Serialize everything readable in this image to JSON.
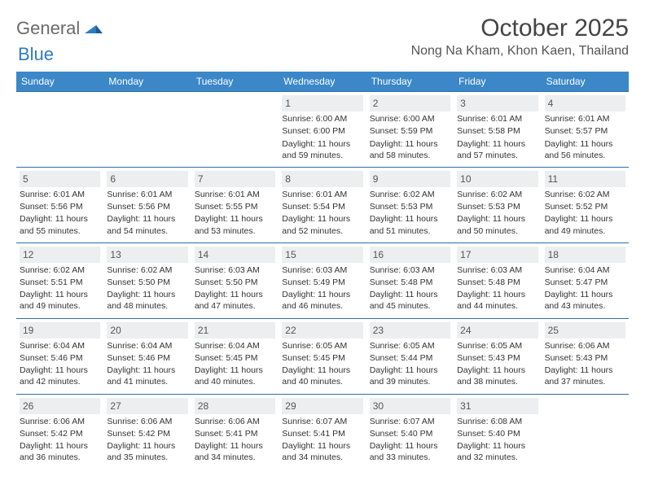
{
  "brand": {
    "word1": "General",
    "word2": "Blue",
    "word1_color": "#6a6a6a",
    "word2_color": "#2e7cc0",
    "mark_color": "#2e7cc0"
  },
  "title": "October 2025",
  "location": "Nong Na Kham, Khon Kaen, Thailand",
  "colors": {
    "header_bg": "#3b87c8",
    "header_text": "#ffffff",
    "row_divider": "#2e6da8",
    "daynum_bg": "#eceeef",
    "text": "#333333"
  },
  "weekdays": [
    "Sunday",
    "Monday",
    "Tuesday",
    "Wednesday",
    "Thursday",
    "Friday",
    "Saturday"
  ],
  "weeks": [
    [
      null,
      null,
      null,
      {
        "n": "1",
        "sr": "Sunrise: 6:00 AM",
        "ss": "Sunset: 6:00 PM",
        "dl": "Daylight: 11 hours and 59 minutes."
      },
      {
        "n": "2",
        "sr": "Sunrise: 6:00 AM",
        "ss": "Sunset: 5:59 PM",
        "dl": "Daylight: 11 hours and 58 minutes."
      },
      {
        "n": "3",
        "sr": "Sunrise: 6:01 AM",
        "ss": "Sunset: 5:58 PM",
        "dl": "Daylight: 11 hours and 57 minutes."
      },
      {
        "n": "4",
        "sr": "Sunrise: 6:01 AM",
        "ss": "Sunset: 5:57 PM",
        "dl": "Daylight: 11 hours and 56 minutes."
      }
    ],
    [
      {
        "n": "5",
        "sr": "Sunrise: 6:01 AM",
        "ss": "Sunset: 5:56 PM",
        "dl": "Daylight: 11 hours and 55 minutes."
      },
      {
        "n": "6",
        "sr": "Sunrise: 6:01 AM",
        "ss": "Sunset: 5:56 PM",
        "dl": "Daylight: 11 hours and 54 minutes."
      },
      {
        "n": "7",
        "sr": "Sunrise: 6:01 AM",
        "ss": "Sunset: 5:55 PM",
        "dl": "Daylight: 11 hours and 53 minutes."
      },
      {
        "n": "8",
        "sr": "Sunrise: 6:01 AM",
        "ss": "Sunset: 5:54 PM",
        "dl": "Daylight: 11 hours and 52 minutes."
      },
      {
        "n": "9",
        "sr": "Sunrise: 6:02 AM",
        "ss": "Sunset: 5:53 PM",
        "dl": "Daylight: 11 hours and 51 minutes."
      },
      {
        "n": "10",
        "sr": "Sunrise: 6:02 AM",
        "ss": "Sunset: 5:53 PM",
        "dl": "Daylight: 11 hours and 50 minutes."
      },
      {
        "n": "11",
        "sr": "Sunrise: 6:02 AM",
        "ss": "Sunset: 5:52 PM",
        "dl": "Daylight: 11 hours and 49 minutes."
      }
    ],
    [
      {
        "n": "12",
        "sr": "Sunrise: 6:02 AM",
        "ss": "Sunset: 5:51 PM",
        "dl": "Daylight: 11 hours and 49 minutes."
      },
      {
        "n": "13",
        "sr": "Sunrise: 6:02 AM",
        "ss": "Sunset: 5:50 PM",
        "dl": "Daylight: 11 hours and 48 minutes."
      },
      {
        "n": "14",
        "sr": "Sunrise: 6:03 AM",
        "ss": "Sunset: 5:50 PM",
        "dl": "Daylight: 11 hours and 47 minutes."
      },
      {
        "n": "15",
        "sr": "Sunrise: 6:03 AM",
        "ss": "Sunset: 5:49 PM",
        "dl": "Daylight: 11 hours and 46 minutes."
      },
      {
        "n": "16",
        "sr": "Sunrise: 6:03 AM",
        "ss": "Sunset: 5:48 PM",
        "dl": "Daylight: 11 hours and 45 minutes."
      },
      {
        "n": "17",
        "sr": "Sunrise: 6:03 AM",
        "ss": "Sunset: 5:48 PM",
        "dl": "Daylight: 11 hours and 44 minutes."
      },
      {
        "n": "18",
        "sr": "Sunrise: 6:04 AM",
        "ss": "Sunset: 5:47 PM",
        "dl": "Daylight: 11 hours and 43 minutes."
      }
    ],
    [
      {
        "n": "19",
        "sr": "Sunrise: 6:04 AM",
        "ss": "Sunset: 5:46 PM",
        "dl": "Daylight: 11 hours and 42 minutes."
      },
      {
        "n": "20",
        "sr": "Sunrise: 6:04 AM",
        "ss": "Sunset: 5:46 PM",
        "dl": "Daylight: 11 hours and 41 minutes."
      },
      {
        "n": "21",
        "sr": "Sunrise: 6:04 AM",
        "ss": "Sunset: 5:45 PM",
        "dl": "Daylight: 11 hours and 40 minutes."
      },
      {
        "n": "22",
        "sr": "Sunrise: 6:05 AM",
        "ss": "Sunset: 5:45 PM",
        "dl": "Daylight: 11 hours and 40 minutes."
      },
      {
        "n": "23",
        "sr": "Sunrise: 6:05 AM",
        "ss": "Sunset: 5:44 PM",
        "dl": "Daylight: 11 hours and 39 minutes."
      },
      {
        "n": "24",
        "sr": "Sunrise: 6:05 AM",
        "ss": "Sunset: 5:43 PM",
        "dl": "Daylight: 11 hours and 38 minutes."
      },
      {
        "n": "25",
        "sr": "Sunrise: 6:06 AM",
        "ss": "Sunset: 5:43 PM",
        "dl": "Daylight: 11 hours and 37 minutes."
      }
    ],
    [
      {
        "n": "26",
        "sr": "Sunrise: 6:06 AM",
        "ss": "Sunset: 5:42 PM",
        "dl": "Daylight: 11 hours and 36 minutes."
      },
      {
        "n": "27",
        "sr": "Sunrise: 6:06 AM",
        "ss": "Sunset: 5:42 PM",
        "dl": "Daylight: 11 hours and 35 minutes."
      },
      {
        "n": "28",
        "sr": "Sunrise: 6:06 AM",
        "ss": "Sunset: 5:41 PM",
        "dl": "Daylight: 11 hours and 34 minutes."
      },
      {
        "n": "29",
        "sr": "Sunrise: 6:07 AM",
        "ss": "Sunset: 5:41 PM",
        "dl": "Daylight: 11 hours and 34 minutes."
      },
      {
        "n": "30",
        "sr": "Sunrise: 6:07 AM",
        "ss": "Sunset: 5:40 PM",
        "dl": "Daylight: 11 hours and 33 minutes."
      },
      {
        "n": "31",
        "sr": "Sunrise: 6:08 AM",
        "ss": "Sunset: 5:40 PM",
        "dl": "Daylight: 11 hours and 32 minutes."
      },
      null
    ]
  ]
}
